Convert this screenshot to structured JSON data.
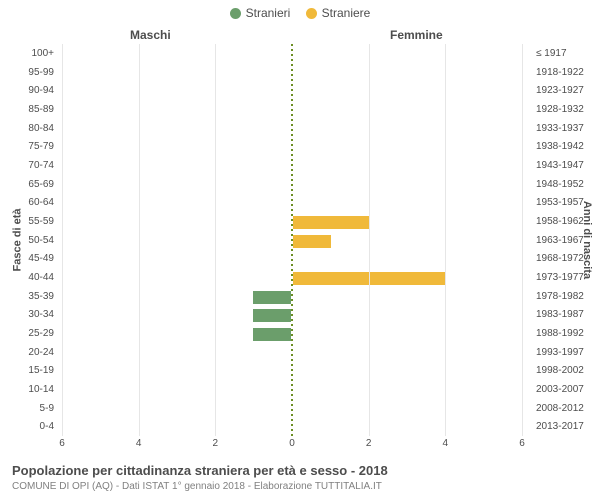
{
  "legend": {
    "male": {
      "label": "Stranieri",
      "color": "#6b9e6b"
    },
    "female": {
      "label": "Straniere",
      "color": "#f0b93a"
    }
  },
  "section_labels": {
    "left": "Maschi",
    "right": "Femmine"
  },
  "axis_titles": {
    "left": "Fasce di età",
    "right": "Anni di nascita"
  },
  "xaxis": {
    "max": 6,
    "ticks": [
      6,
      4,
      2,
      0,
      2,
      4,
      6
    ]
  },
  "center_line": {
    "color": "#6b8e23",
    "dash": "2,3",
    "width": 2
  },
  "grid_color": "#e6e6e6",
  "bar_fill": {
    "male": "#6b9e6b",
    "female": "#f0b93a"
  },
  "bar_border": "#ffffff",
  "rows": [
    {
      "age": "100+",
      "birth": "≤ 1917",
      "m": 0,
      "f": 0
    },
    {
      "age": "95-99",
      "birth": "1918-1922",
      "m": 0,
      "f": 0
    },
    {
      "age": "90-94",
      "birth": "1923-1927",
      "m": 0,
      "f": 0
    },
    {
      "age": "85-89",
      "birth": "1928-1932",
      "m": 0,
      "f": 0
    },
    {
      "age": "80-84",
      "birth": "1933-1937",
      "m": 0,
      "f": 0
    },
    {
      "age": "75-79",
      "birth": "1938-1942",
      "m": 0,
      "f": 0
    },
    {
      "age": "70-74",
      "birth": "1943-1947",
      "m": 0,
      "f": 0
    },
    {
      "age": "65-69",
      "birth": "1948-1952",
      "m": 0,
      "f": 0
    },
    {
      "age": "60-64",
      "birth": "1953-1957",
      "m": 0,
      "f": 0
    },
    {
      "age": "55-59",
      "birth": "1958-1962",
      "m": 0,
      "f": 2
    },
    {
      "age": "50-54",
      "birth": "1963-1967",
      "m": 0,
      "f": 1
    },
    {
      "age": "45-49",
      "birth": "1968-1972",
      "m": 0,
      "f": 0
    },
    {
      "age": "40-44",
      "birth": "1973-1977",
      "m": 0,
      "f": 4
    },
    {
      "age": "35-39",
      "birth": "1978-1982",
      "m": 1,
      "f": 0
    },
    {
      "age": "30-34",
      "birth": "1983-1987",
      "m": 1,
      "f": 0
    },
    {
      "age": "25-29",
      "birth": "1988-1992",
      "m": 1,
      "f": 0
    },
    {
      "age": "20-24",
      "birth": "1993-1997",
      "m": 0,
      "f": 0
    },
    {
      "age": "15-19",
      "birth": "1998-2002",
      "m": 0,
      "f": 0
    },
    {
      "age": "10-14",
      "birth": "2003-2007",
      "m": 0,
      "f": 0
    },
    {
      "age": "5-9",
      "birth": "2008-2012",
      "m": 0,
      "f": 0
    },
    {
      "age": "0-4",
      "birth": "2013-2017",
      "m": 0,
      "f": 0
    }
  ],
  "footer": {
    "title": "Popolazione per cittadinanza straniera per età e sesso - 2018",
    "subtitle": "COMUNE DI OPI (AQ) - Dati ISTAT 1° gennaio 2018 - Elaborazione TUTTITALIA.IT"
  }
}
